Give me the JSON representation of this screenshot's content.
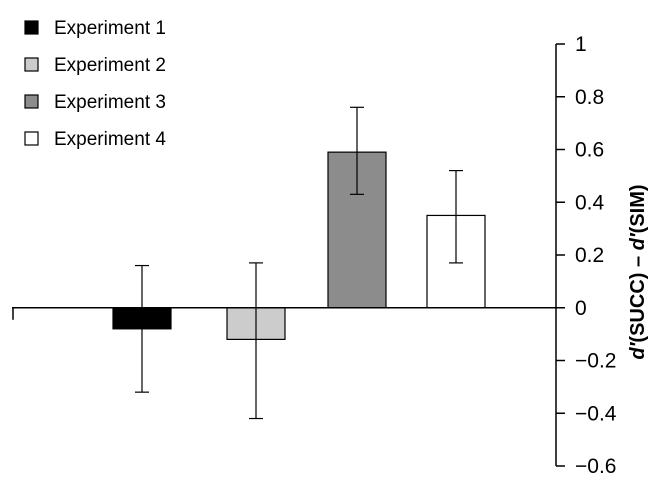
{
  "chart_data": {
    "type": "bar",
    "title": "",
    "xlabel": "",
    "ylabel_parts": [
      "d′",
      "(SUCC) – ",
      "d′",
      "(SIM)"
    ],
    "ylim": [
      -0.6,
      1
    ],
    "yticks": [
      1,
      0.8,
      0.6,
      0.4,
      0.2,
      0,
      -0.2,
      -0.4,
      -0.6
    ],
    "ytick_labels": [
      "1",
      "0.8",
      "0.6",
      "0.4",
      "0.2",
      "0",
      "−0.2",
      "−0.4",
      "−0.6"
    ],
    "legend_position": "top-left",
    "grid": false,
    "series": [
      {
        "name": "Experiment 1",
        "value": -0.08,
        "error_low": -0.32,
        "error_high": 0.16,
        "color": "#000000"
      },
      {
        "name": "Experiment 2",
        "value": -0.12,
        "error_low": -0.42,
        "error_high": 0.17,
        "color": "#cccccc"
      },
      {
        "name": "Experiment 3",
        "value": 0.59,
        "error_low": 0.43,
        "error_high": 0.76,
        "color": "#8c8c8c"
      },
      {
        "name": "Experiment 4",
        "value": 0.35,
        "error_low": 0.17,
        "error_high": 0.52,
        "color": "#ffffff"
      }
    ]
  }
}
